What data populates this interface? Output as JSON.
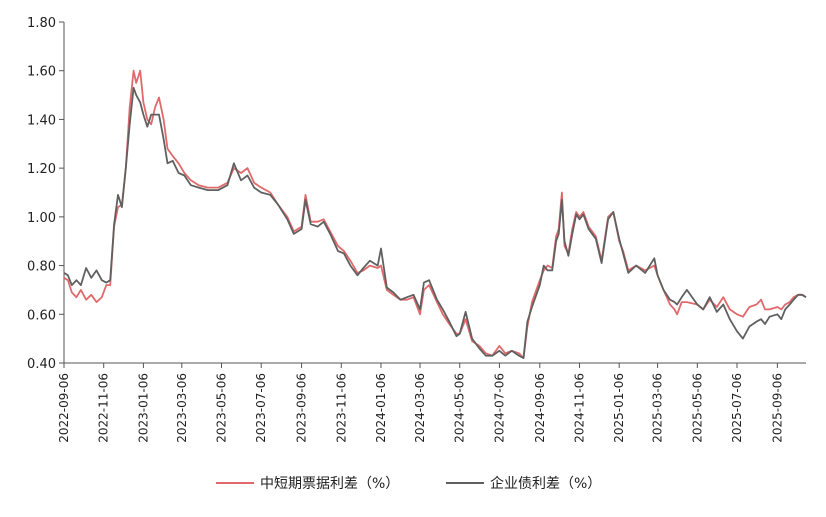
{
  "chart_data": {
    "type": "line",
    "title": "",
    "xlabel": "",
    "ylabel": "",
    "ylim": [
      0.4,
      1.8
    ],
    "grid": false,
    "legend_position": "bottom",
    "y_ticks": [
      "0.40",
      "0.60",
      "0.80",
      "1.00",
      "1.20",
      "1.40",
      "1.60",
      "1.80"
    ],
    "x_ticks": [
      "2022-09-06",
      "2022-11-06",
      "2023-01-06",
      "2023-03-06",
      "2023-05-06",
      "2023-07-06",
      "2023-09-06",
      "2023-11-06",
      "2024-01-06",
      "2024-03-06",
      "2024-05-06",
      "2024-07-06",
      "2024-09-06",
      "2024-11-06",
      "2025-01-06",
      "2025-03-06",
      "2025-05-06",
      "2025-07-06",
      "2025-09-06"
    ],
    "x_range": [
      "2022-09-06",
      "2025-10-20"
    ],
    "series": [
      {
        "name": "中短期票据利差（%）",
        "color": "#E0696B",
        "points": [
          [
            "2022-09-06",
            0.75
          ],
          [
            "2022-09-12",
            0.74
          ],
          [
            "2022-09-18",
            0.69
          ],
          [
            "2022-09-25",
            0.67
          ],
          [
            "2022-10-02",
            0.7
          ],
          [
            "2022-10-10",
            0.66
          ],
          [
            "2022-10-18",
            0.68
          ],
          [
            "2022-10-26",
            0.65
          ],
          [
            "2022-11-03",
            0.67
          ],
          [
            "2022-11-10",
            0.72
          ],
          [
            "2022-11-16",
            0.72
          ],
          [
            "2022-11-22",
            0.96
          ],
          [
            "2022-11-28",
            1.04
          ],
          [
            "2022-12-04",
            1.05
          ],
          [
            "2022-12-10",
            1.2
          ],
          [
            "2022-12-16",
            1.45
          ],
          [
            "2022-12-22",
            1.6
          ],
          [
            "2022-12-26",
            1.55
          ],
          [
            "2023-01-01",
            1.6
          ],
          [
            "2023-01-06",
            1.47
          ],
          [
            "2023-01-12",
            1.4
          ],
          [
            "2023-01-18",
            1.38
          ],
          [
            "2023-01-24",
            1.45
          ],
          [
            "2023-01-30",
            1.49
          ],
          [
            "2023-02-06",
            1.4
          ],
          [
            "2023-02-12",
            1.28
          ],
          [
            "2023-02-20",
            1.25
          ],
          [
            "2023-03-01",
            1.22
          ],
          [
            "2023-03-10",
            1.18
          ],
          [
            "2023-03-20",
            1.15
          ],
          [
            "2023-04-01",
            1.13
          ],
          [
            "2023-04-15",
            1.12
          ],
          [
            "2023-05-01",
            1.12
          ],
          [
            "2023-05-15",
            1.14
          ],
          [
            "2023-05-25",
            1.2
          ],
          [
            "2023-06-05",
            1.18
          ],
          [
            "2023-06-15",
            1.2
          ],
          [
            "2023-06-25",
            1.14
          ],
          [
            "2023-07-06",
            1.12
          ],
          [
            "2023-07-20",
            1.1
          ],
          [
            "2023-08-01",
            1.05
          ],
          [
            "2023-08-15",
            1.0
          ],
          [
            "2023-08-25",
            0.94
          ],
          [
            "2023-09-06",
            0.96
          ],
          [
            "2023-09-12",
            1.09
          ],
          [
            "2023-09-20",
            0.98
          ],
          [
            "2023-10-01",
            0.98
          ],
          [
            "2023-10-10",
            0.99
          ],
          [
            "2023-10-20",
            0.94
          ],
          [
            "2023-11-01",
            0.88
          ],
          [
            "2023-11-10",
            0.86
          ],
          [
            "2023-11-20",
            0.82
          ],
          [
            "2023-12-01",
            0.77
          ],
          [
            "2023-12-10",
            0.78
          ],
          [
            "2023-12-20",
            0.8
          ],
          [
            "2024-01-01",
            0.79
          ],
          [
            "2024-01-06",
            0.8
          ],
          [
            "2024-01-15",
            0.7
          ],
          [
            "2024-01-25",
            0.68
          ],
          [
            "2024-02-05",
            0.66
          ],
          [
            "2024-02-15",
            0.66
          ],
          [
            "2024-02-25",
            0.67
          ],
          [
            "2024-03-06",
            0.6
          ],
          [
            "2024-03-12",
            0.7
          ],
          [
            "2024-03-20",
            0.72
          ],
          [
            "2024-04-01",
            0.65
          ],
          [
            "2024-04-10",
            0.6
          ],
          [
            "2024-04-20",
            0.56
          ],
          [
            "2024-05-01",
            0.52
          ],
          [
            "2024-05-06",
            0.52
          ],
          [
            "2024-05-15",
            0.58
          ],
          [
            "2024-05-25",
            0.49
          ],
          [
            "2024-06-05",
            0.47
          ],
          [
            "2024-06-15",
            0.44
          ],
          [
            "2024-06-25",
            0.43
          ],
          [
            "2024-07-06",
            0.47
          ],
          [
            "2024-07-15",
            0.44
          ],
          [
            "2024-07-25",
            0.45
          ],
          [
            "2024-08-05",
            0.44
          ],
          [
            "2024-08-12",
            0.42
          ],
          [
            "2024-08-18",
            0.55
          ],
          [
            "2024-08-25",
            0.65
          ],
          [
            "2024-09-06",
            0.74
          ],
          [
            "2024-09-12",
            0.78
          ],
          [
            "2024-09-18",
            0.8
          ],
          [
            "2024-09-25",
            0.79
          ],
          [
            "2024-10-01",
            0.92
          ],
          [
            "2024-10-05",
            0.95
          ],
          [
            "2024-10-10",
            1.1
          ],
          [
            "2024-10-14",
            0.88
          ],
          [
            "2024-10-20",
            0.85
          ],
          [
            "2024-10-26",
            0.95
          ],
          [
            "2024-11-01",
            1.02
          ],
          [
            "2024-11-06",
            1.0
          ],
          [
            "2024-11-12",
            1.02
          ],
          [
            "2024-11-20",
            0.96
          ],
          [
            "2024-12-01",
            0.92
          ],
          [
            "2024-12-10",
            0.82
          ],
          [
            "2024-12-20",
            1.0
          ],
          [
            "2024-12-28",
            1.02
          ],
          [
            "2025-01-06",
            0.9
          ],
          [
            "2025-01-12",
            0.86
          ],
          [
            "2025-01-20",
            0.78
          ],
          [
            "2025-02-01",
            0.8
          ],
          [
            "2025-02-15",
            0.78
          ],
          [
            "2025-03-01",
            0.8
          ],
          [
            "2025-03-06",
            0.76
          ],
          [
            "2025-03-15",
            0.7
          ],
          [
            "2025-03-25",
            0.64
          ],
          [
            "2025-04-01",
            0.62
          ],
          [
            "2025-04-05",
            0.6
          ],
          [
            "2025-04-12",
            0.65
          ],
          [
            "2025-04-20",
            0.65
          ],
          [
            "2025-05-06",
            0.64
          ],
          [
            "2025-05-15",
            0.62
          ],
          [
            "2025-05-25",
            0.66
          ],
          [
            "2025-06-05",
            0.63
          ],
          [
            "2025-06-15",
            0.67
          ],
          [
            "2025-06-25",
            0.62
          ],
          [
            "2025-07-06",
            0.6
          ],
          [
            "2025-07-15",
            0.59
          ],
          [
            "2025-07-25",
            0.63
          ],
          [
            "2025-08-05",
            0.64
          ],
          [
            "2025-08-12",
            0.66
          ],
          [
            "2025-08-18",
            0.62
          ],
          [
            "2025-08-25",
            0.62
          ],
          [
            "2025-09-06",
            0.63
          ],
          [
            "2025-09-12",
            0.62
          ],
          [
            "2025-09-18",
            0.64
          ],
          [
            "2025-09-25",
            0.65
          ],
          [
            "2025-10-01",
            0.67
          ],
          [
            "2025-10-08",
            0.68
          ],
          [
            "2025-10-14",
            0.68
          ],
          [
            "2025-10-20",
            0.67
          ]
        ]
      },
      {
        "name": "企业债利差（%）",
        "color": "#606060",
        "points": [
          [
            "2022-09-06",
            0.77
          ],
          [
            "2022-09-12",
            0.76
          ],
          [
            "2022-09-18",
            0.72
          ],
          [
            "2022-09-25",
            0.74
          ],
          [
            "2022-10-02",
            0.72
          ],
          [
            "2022-10-10",
            0.79
          ],
          [
            "2022-10-18",
            0.75
          ],
          [
            "2022-10-26",
            0.78
          ],
          [
            "2022-11-03",
            0.74
          ],
          [
            "2022-11-10",
            0.73
          ],
          [
            "2022-11-16",
            0.74
          ],
          [
            "2022-11-22",
            0.97
          ],
          [
            "2022-11-28",
            1.09
          ],
          [
            "2022-12-04",
            1.04
          ],
          [
            "2022-12-10",
            1.2
          ],
          [
            "2022-12-16",
            1.38
          ],
          [
            "2022-12-22",
            1.53
          ],
          [
            "2022-12-26",
            1.5
          ],
          [
            "2023-01-01",
            1.47
          ],
          [
            "2023-01-06",
            1.42
          ],
          [
            "2023-01-12",
            1.37
          ],
          [
            "2023-01-18",
            1.42
          ],
          [
            "2023-01-24",
            1.42
          ],
          [
            "2023-01-30",
            1.42
          ],
          [
            "2023-02-06",
            1.32
          ],
          [
            "2023-02-12",
            1.22
          ],
          [
            "2023-02-20",
            1.23
          ],
          [
            "2023-03-01",
            1.18
          ],
          [
            "2023-03-10",
            1.17
          ],
          [
            "2023-03-20",
            1.13
          ],
          [
            "2023-04-01",
            1.12
          ],
          [
            "2023-04-15",
            1.11
          ],
          [
            "2023-05-01",
            1.11
          ],
          [
            "2023-05-15",
            1.13
          ],
          [
            "2023-05-25",
            1.22
          ],
          [
            "2023-06-05",
            1.15
          ],
          [
            "2023-06-15",
            1.17
          ],
          [
            "2023-06-25",
            1.12
          ],
          [
            "2023-07-06",
            1.1
          ],
          [
            "2023-07-20",
            1.09
          ],
          [
            "2023-08-01",
            1.05
          ],
          [
            "2023-08-15",
            0.99
          ],
          [
            "2023-08-25",
            0.93
          ],
          [
            "2023-09-06",
            0.95
          ],
          [
            "2023-09-12",
            1.07
          ],
          [
            "2023-09-20",
            0.97
          ],
          [
            "2023-10-01",
            0.96
          ],
          [
            "2023-10-10",
            0.98
          ],
          [
            "2023-10-20",
            0.93
          ],
          [
            "2023-11-01",
            0.86
          ],
          [
            "2023-11-10",
            0.85
          ],
          [
            "2023-11-20",
            0.8
          ],
          [
            "2023-12-01",
            0.76
          ],
          [
            "2023-12-10",
            0.79
          ],
          [
            "2023-12-20",
            0.82
          ],
          [
            "2024-01-01",
            0.8
          ],
          [
            "2024-01-06",
            0.87
          ],
          [
            "2024-01-15",
            0.71
          ],
          [
            "2024-01-25",
            0.69
          ],
          [
            "2024-02-05",
            0.66
          ],
          [
            "2024-02-15",
            0.67
          ],
          [
            "2024-02-25",
            0.68
          ],
          [
            "2024-03-06",
            0.62
          ],
          [
            "2024-03-12",
            0.73
          ],
          [
            "2024-03-20",
            0.74
          ],
          [
            "2024-04-01",
            0.66
          ],
          [
            "2024-04-10",
            0.62
          ],
          [
            "2024-04-20",
            0.57
          ],
          [
            "2024-05-01",
            0.51
          ],
          [
            "2024-05-06",
            0.52
          ],
          [
            "2024-05-15",
            0.61
          ],
          [
            "2024-05-25",
            0.5
          ],
          [
            "2024-06-05",
            0.46
          ],
          [
            "2024-06-15",
            0.43
          ],
          [
            "2024-06-25",
            0.43
          ],
          [
            "2024-07-06",
            0.45
          ],
          [
            "2024-07-15",
            0.43
          ],
          [
            "2024-07-25",
            0.45
          ],
          [
            "2024-08-05",
            0.43
          ],
          [
            "2024-08-12",
            0.42
          ],
          [
            "2024-08-18",
            0.57
          ],
          [
            "2024-08-25",
            0.63
          ],
          [
            "2024-09-06",
            0.72
          ],
          [
            "2024-09-12",
            0.8
          ],
          [
            "2024-09-18",
            0.78
          ],
          [
            "2024-09-25",
            0.78
          ],
          [
            "2024-10-01",
            0.9
          ],
          [
            "2024-10-05",
            0.93
          ],
          [
            "2024-10-10",
            1.07
          ],
          [
            "2024-10-14",
            0.9
          ],
          [
            "2024-10-20",
            0.84
          ],
          [
            "2024-10-26",
            0.93
          ],
          [
            "2024-11-01",
            1.01
          ],
          [
            "2024-11-06",
            0.99
          ],
          [
            "2024-11-12",
            1.01
          ],
          [
            "2024-11-20",
            0.95
          ],
          [
            "2024-12-01",
            0.91
          ],
          [
            "2024-12-10",
            0.81
          ],
          [
            "2024-12-20",
            0.99
          ],
          [
            "2024-12-28",
            1.02
          ],
          [
            "2025-01-06",
            0.91
          ],
          [
            "2025-01-12",
            0.85
          ],
          [
            "2025-01-20",
            0.77
          ],
          [
            "2025-02-01",
            0.8
          ],
          [
            "2025-02-15",
            0.77
          ],
          [
            "2025-03-01",
            0.83
          ],
          [
            "2025-03-06",
            0.76
          ],
          [
            "2025-03-15",
            0.7
          ],
          [
            "2025-03-25",
            0.66
          ],
          [
            "2025-04-01",
            0.65
          ],
          [
            "2025-04-05",
            0.64
          ],
          [
            "2025-04-12",
            0.67
          ],
          [
            "2025-04-20",
            0.7
          ],
          [
            "2025-05-06",
            0.64
          ],
          [
            "2025-05-15",
            0.62
          ],
          [
            "2025-05-25",
            0.67
          ],
          [
            "2025-06-05",
            0.61
          ],
          [
            "2025-06-15",
            0.64
          ],
          [
            "2025-06-25",
            0.58
          ],
          [
            "2025-07-06",
            0.53
          ],
          [
            "2025-07-15",
            0.5
          ],
          [
            "2025-07-25",
            0.55
          ],
          [
            "2025-08-05",
            0.57
          ],
          [
            "2025-08-12",
            0.58
          ],
          [
            "2025-08-18",
            0.56
          ],
          [
            "2025-08-25",
            0.59
          ],
          [
            "2025-09-06",
            0.6
          ],
          [
            "2025-09-12",
            0.58
          ],
          [
            "2025-09-18",
            0.62
          ],
          [
            "2025-09-25",
            0.64
          ],
          [
            "2025-10-01",
            0.66
          ],
          [
            "2025-10-08",
            0.68
          ],
          [
            "2025-10-14",
            0.68
          ],
          [
            "2025-10-20",
            0.67
          ]
        ]
      }
    ]
  }
}
